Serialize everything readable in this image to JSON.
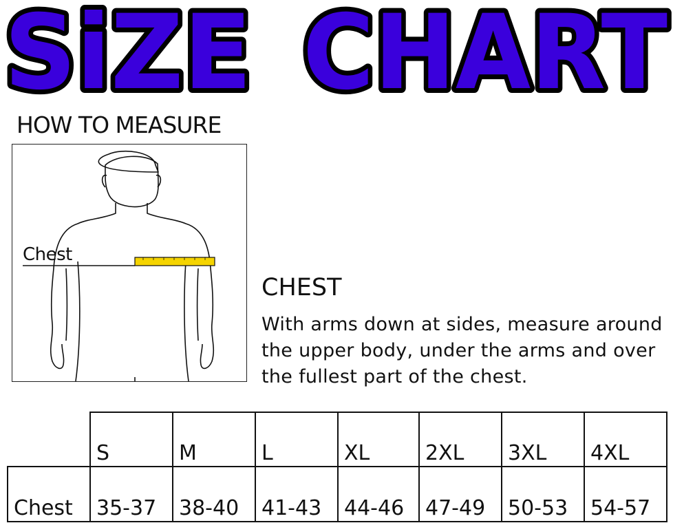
{
  "title": "SiZE CHART",
  "title_color": "#3a00dc",
  "how_to_measure": "HOW TO MEASURE",
  "figure": {
    "chest_label": "Chest",
    "tape_color": "#f5d400"
  },
  "instructions": {
    "heading": "CHEST",
    "text": "With arms down at sides, measure around the upper body, under the arms and over the fullest part of the chest."
  },
  "table": {
    "sizes": [
      "S",
      "M",
      "L",
      "XL",
      "2XL",
      "3XL",
      "4XL"
    ],
    "row_label": "Chest",
    "values": [
      "35-37",
      "38-40",
      "41-43",
      "44-46",
      "47-49",
      "50-53",
      "54-57"
    ]
  }
}
